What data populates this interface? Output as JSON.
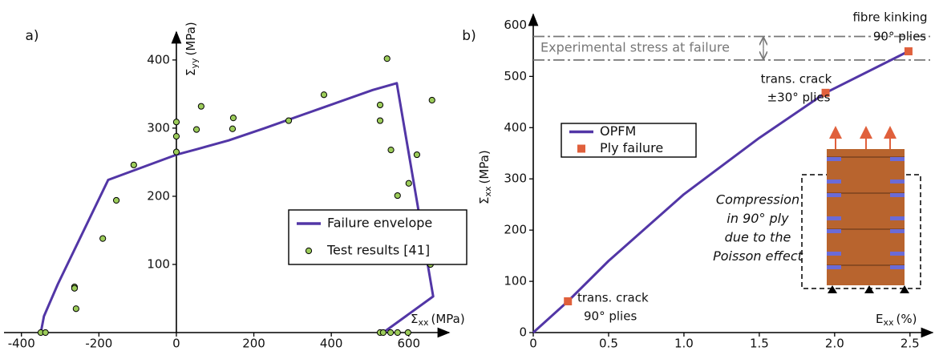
{
  "chart_data": [
    {
      "type": "line",
      "panel_label": "a)",
      "xlabel": {
        "symbol": "Σ",
        "subscript": "xx",
        "unit": "(MPa)"
      },
      "ylabel": {
        "symbol": "Σ",
        "subscript": "yy",
        "unit": "(MPa)"
      },
      "xlim": [
        -445,
        704
      ],
      "ylim": [
        0,
        441
      ],
      "xticks": [
        -400,
        -200,
        0,
        200,
        400,
        600
      ],
      "yticks": [
        100,
        200,
        300,
        400
      ],
      "series": [
        {
          "name": "Failure envelope",
          "type": "line",
          "color": "#5236a6",
          "x": [
            -350,
            -342,
            -306,
            -176,
            0,
            52,
            135,
            228,
            373,
            507,
            569,
            663,
            534
          ],
          "values": [
            0,
            24,
            71,
            224,
            261,
            269,
            282,
            300,
            329,
            356,
            366,
            53,
            0
          ]
        },
        {
          "name": "Test results [41]",
          "type": "scatter",
          "color": "#9ccc5a",
          "x": [
            -350,
            -338,
            -263,
            -263,
            -259,
            -190,
            -155,
            -110,
            0,
            0,
            0,
            52,
            64,
            147,
            145,
            290,
            381,
            526,
            526,
            544,
            554,
            571,
            588,
            600,
            607,
            621,
            625,
            656,
            660,
            526,
            534,
            553,
            571,
            598
          ],
          "values": [
            0,
            0,
            67,
            65,
            35,
            138,
            194,
            246,
            309,
            288,
            265,
            298,
            332,
            315,
            299,
            311,
            349,
            334,
            311,
            402,
            268,
            201,
            156,
            219,
            127,
            261,
            154,
            100,
            341,
            0,
            0,
            0,
            0,
            0
          ]
        }
      ]
    },
    {
      "type": "line",
      "panel_label": "b)",
      "xlabel": {
        "symbol": "E",
        "subscript": "xx",
        "unit": "(%)"
      },
      "ylabel": {
        "symbol": "Σ",
        "subscript": "xx",
        "unit": "(MPa)"
      },
      "xlim": [
        0,
        2.65
      ],
      "ylim": [
        0,
        621
      ],
      "xticks": [
        0,
        0.5,
        {
          "value": 1,
          "label": "1.0"
        },
        1.5,
        {
          "value": 2,
          "label": "2.0"
        },
        2.5
      ],
      "yticks": [
        0,
        100,
        200,
        300,
        400,
        500,
        600
      ],
      "hlines": [
        578,
        532
      ],
      "hline_label": "Experimental stress at failure",
      "series": [
        {
          "name": "OPFM",
          "type": "line",
          "color": "#5236a6",
          "x": [
            0,
            0.23,
            0.5,
            1.0,
            1.5,
            1.94,
            2.49
          ],
          "values": [
            0,
            61,
            140,
            270,
            380,
            468,
            549
          ]
        },
        {
          "name": "Ply failure",
          "type": "scatter",
          "marker": "square",
          "color": "#e0603c",
          "x": [
            0.23,
            1.94,
            2.49
          ],
          "values": [
            61,
            468,
            549
          ]
        }
      ],
      "annotations": [
        "fibre kinking",
        "90° plies",
        "trans. crack",
        "±30° plies",
        "trans. crack",
        "90° plies"
      ],
      "inset_text": [
        "Compression",
        "in 90° ply",
        "due to the",
        "Poisson effect"
      ]
    }
  ]
}
